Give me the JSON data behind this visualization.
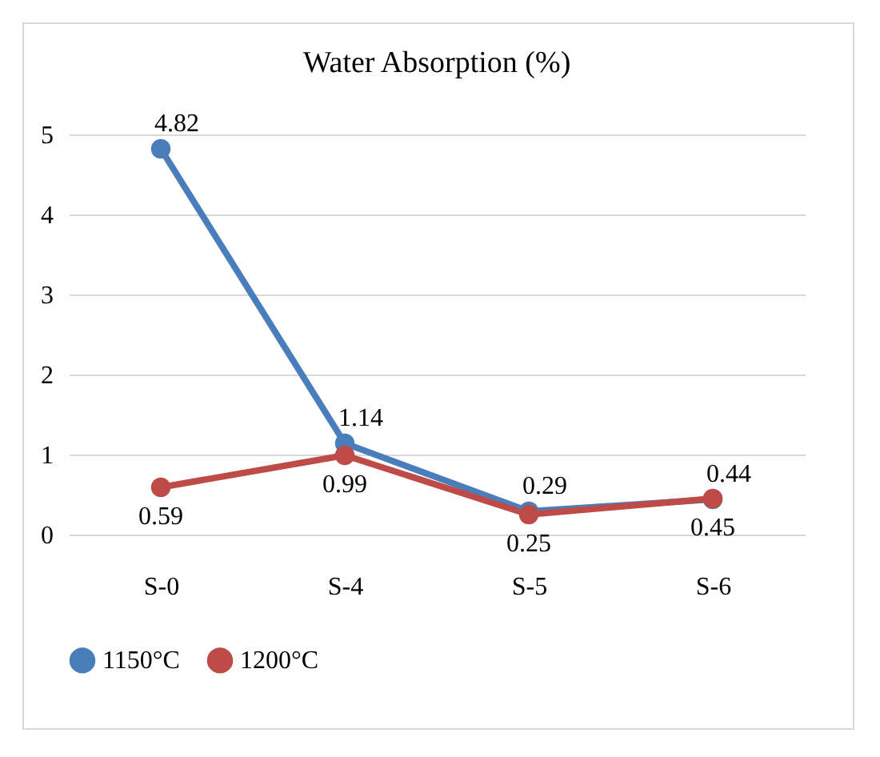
{
  "chart_data": {
    "type": "line",
    "title": "Water Absorption (%)",
    "categories": [
      "S-0",
      "S-4",
      "S-5",
      "S-6"
    ],
    "series": [
      {
        "name": "1150°C",
        "color": "#4a7ebb",
        "values": [
          4.82,
          1.14,
          0.29,
          0.44
        ]
      },
      {
        "name": "1200°C",
        "color": "#be4b48",
        "values": [
          0.59,
          0.99,
          0.25,
          0.45
        ]
      }
    ],
    "ylim": [
      0,
      5
    ],
    "yticks": [
      0,
      1,
      2,
      3,
      4,
      5
    ],
    "grid": "y",
    "legend": "bottom",
    "marker": "circle",
    "data_labels": true
  }
}
